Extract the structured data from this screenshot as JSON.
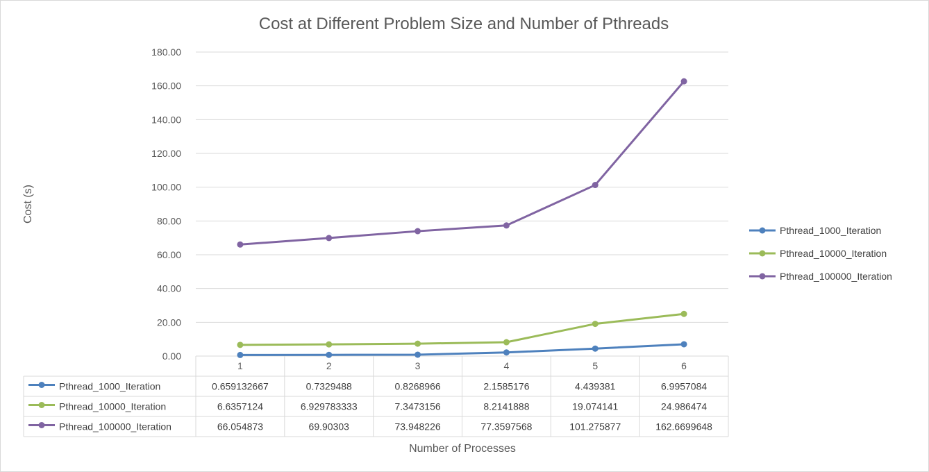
{
  "chart_data": {
    "type": "line",
    "title": "Cost at Different Problem Size and Number of Pthreads",
    "xlabel": "Number of Processes",
    "ylabel": "Cost (s)",
    "categories": [
      "1",
      "2",
      "3",
      "4",
      "5",
      "6"
    ],
    "ylim": [
      0,
      180
    ],
    "yticks": [
      "0.00",
      "20.00",
      "40.00",
      "60.00",
      "80.00",
      "100.00",
      "120.00",
      "140.00",
      "160.00",
      "180.00"
    ],
    "grid": true,
    "legend_position": "right",
    "data_table": true,
    "series": [
      {
        "name": "Pthread_1000_Iteration",
        "color": "#4e81bd",
        "values": [
          0.659132667,
          0.7329488,
          0.8268966,
          2.1585176,
          4.439381,
          6.9957084
        ],
        "table_values": [
          "0.659132667",
          "0.7329488",
          "0.8268966",
          "2.1585176",
          "4.439381",
          "6.9957084"
        ]
      },
      {
        "name": "Pthread_10000_Iteration",
        "color": "#9bbb59",
        "values": [
          6.6357124,
          6.929783333,
          7.3473156,
          8.2141888,
          19.074141,
          24.986474
        ],
        "table_values": [
          "6.6357124",
          "6.929783333",
          "7.3473156",
          "8.2141888",
          "19.074141",
          "24.986474"
        ]
      },
      {
        "name": "Pthread_100000_Iteration",
        "color": "#8064a2",
        "values": [
          66.054873,
          69.90303,
          73.948226,
          77.3597568,
          101.275877,
          162.6699648
        ],
        "table_values": [
          "66.054873",
          "69.90303",
          "73.948226",
          "77.3597568",
          "101.275877",
          "162.6699648"
        ]
      }
    ]
  }
}
